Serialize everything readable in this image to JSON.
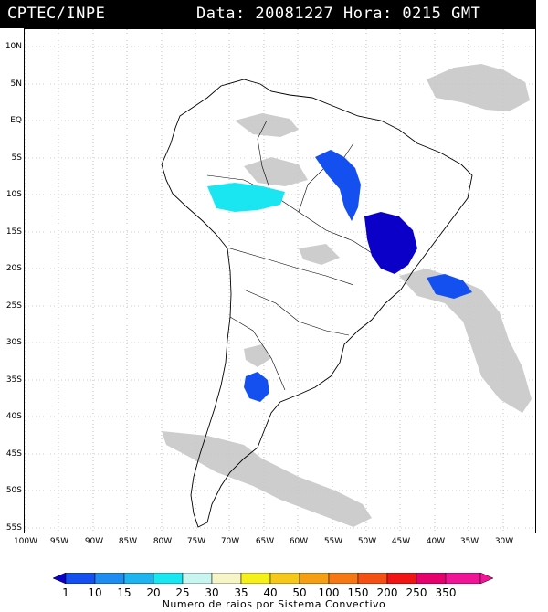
{
  "header": {
    "product": "CPTEC/INPE",
    "datetime": "Data: 20081227 Hora: 0215 GMT"
  },
  "latitude_labels": [
    "10N",
    "5N",
    "EQ",
    "5S",
    "10S",
    "15S",
    "20S",
    "25S",
    "30S",
    "35S",
    "40S",
    "45S",
    "50S",
    "55S"
  ],
  "longitude_labels": [
    "100W",
    "95W",
    "90W",
    "85W",
    "80W",
    "75W",
    "70W",
    "65W",
    "60W",
    "55W",
    "50W",
    "45W",
    "40W",
    "35W",
    "30W"
  ],
  "colorbar": {
    "ticks": [
      "1",
      "10",
      "15",
      "20",
      "25",
      "30",
      "35",
      "40",
      "50",
      "100",
      "150",
      "200",
      "250",
      "350"
    ],
    "colors": [
      "#0a00c8",
      "#1450f0",
      "#1e8cf0",
      "#1eb4f0",
      "#19e6f0",
      "#c8f5f0",
      "#f5f5c8",
      "#f5f019",
      "#f5c819",
      "#f5a014",
      "#f57814",
      "#f55014",
      "#f01414",
      "#e6006e",
      "#f01496"
    ],
    "caption": "Numero de raios por Sistema Convectivo"
  },
  "map_colors": {
    "cloud_gray": "#c8c8c8",
    "class_1_10": "#0a00c8",
    "class_10_15": "#1450f0",
    "class_20_25": "#19e6f0"
  }
}
